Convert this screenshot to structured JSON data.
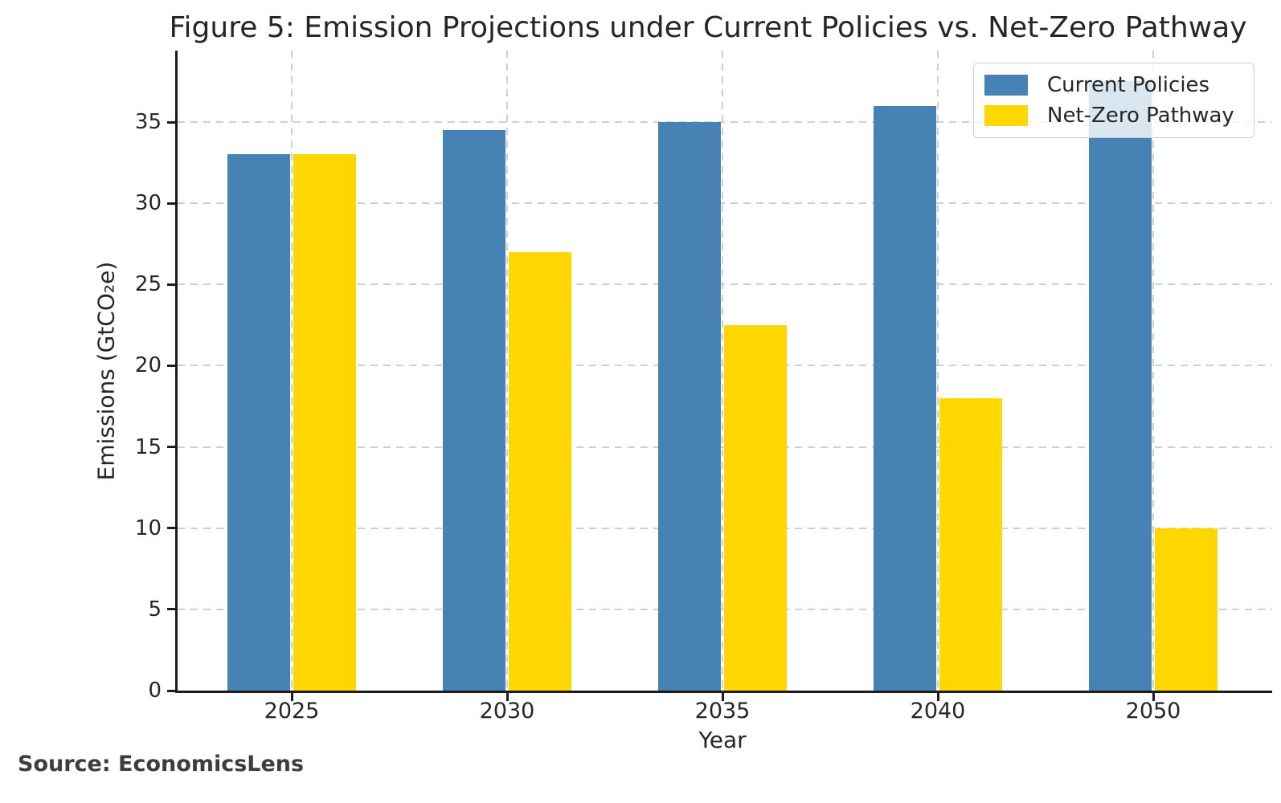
{
  "source": "Source: EconomicsLens",
  "chart_data": {
    "type": "bar",
    "title": "Figure 5: Emission Projections under Current Policies vs. Net-Zero Pathway",
    "categories": [
      "2025",
      "2030",
      "2035",
      "2040",
      "2050"
    ],
    "series": [
      {
        "name": "Current Policies",
        "color": "#4682B4",
        "values": [
          33,
          34.5,
          35,
          36,
          37.5
        ]
      },
      {
        "name": "Net-Zero Pathway",
        "color": "#FFD700",
        "values": [
          33,
          27,
          22.5,
          18,
          10
        ]
      }
    ],
    "xlabel": "Year",
    "ylabel": "Emissions (GtCO₂e)",
    "ylim": [
      0,
      39.4
    ],
    "yticks": [
      0,
      5,
      10,
      15,
      20,
      25,
      30,
      35
    ],
    "grid": true,
    "grid_style": "dashed",
    "legend_position": "upper right",
    "source_note": "Source: EconomicsLens"
  }
}
